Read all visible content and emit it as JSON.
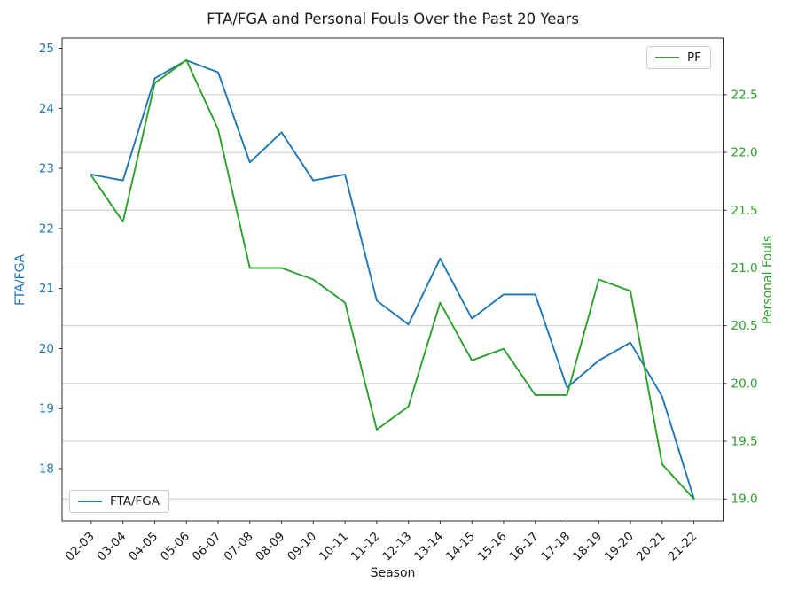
{
  "chart_data": {
    "type": "line",
    "title": "FTA/FGA and Personal Fouls Over the Past 20 Years",
    "x_axis": {
      "label": "Season",
      "categories": [
        "02-03",
        "03-04",
        "04-05",
        "05-06",
        "06-07",
        "07-08",
        "08-09",
        "09-10",
        "10-11",
        "11-12",
        "12-13",
        "13-14",
        "14-15",
        "15-16",
        "16-17",
        "17-18",
        "18-19",
        "19-20",
        "20-21",
        "21-22"
      ],
      "tick_label_rotation_deg": -45,
      "xlim": [
        -0.92,
        19.92
      ]
    },
    "left_axis": {
      "label": "FTA/FGA",
      "color": "#1f77b4",
      "range": [
        17.13,
        25.17
      ],
      "tick_values": [
        18,
        19,
        20,
        21,
        22,
        23,
        24,
        25
      ],
      "tick_labels": [
        "18",
        "19",
        "20",
        "21",
        "22",
        "23",
        "24",
        "25"
      ]
    },
    "right_axis": {
      "label": "Personal Fouls",
      "color": "#2ca02c",
      "range": [
        18.81,
        22.99
      ],
      "tick_values": [
        19.0,
        19.5,
        20.0,
        20.5,
        21.0,
        21.5,
        22.0,
        22.5
      ],
      "tick_labels": [
        "19.0",
        "19.5",
        "20.0",
        "20.5",
        "21.0",
        "21.5",
        "22.0",
        "22.5"
      ],
      "gridlines": true
    },
    "grid": {
      "show": true,
      "color": "#cccccc",
      "axis": "right-y"
    },
    "series": [
      {
        "name": "FTA/FGA",
        "axis": "left",
        "color": "#1f77b4",
        "legend_position": "lower left",
        "values": [
          22.9,
          22.8,
          24.5,
          24.8,
          24.6,
          23.1,
          23.6,
          22.8,
          22.9,
          20.8,
          20.4,
          21.5,
          20.5,
          20.9,
          20.9,
          19.35,
          19.8,
          20.1,
          19.2,
          17.5
        ]
      },
      {
        "name": "PF",
        "axis": "right",
        "color": "#2ca02c",
        "legend_position": "upper right",
        "values": [
          21.8,
          21.4,
          22.6,
          22.8,
          22.2,
          21.0,
          21.0,
          20.9,
          20.7,
          19.6,
          19.8,
          20.7,
          20.2,
          20.3,
          19.9,
          19.9,
          20.9,
          20.8,
          19.3,
          19.0
        ]
      }
    ],
    "frame_color": "#2b2b2b",
    "tick_text_color": "#1a1a1a"
  }
}
